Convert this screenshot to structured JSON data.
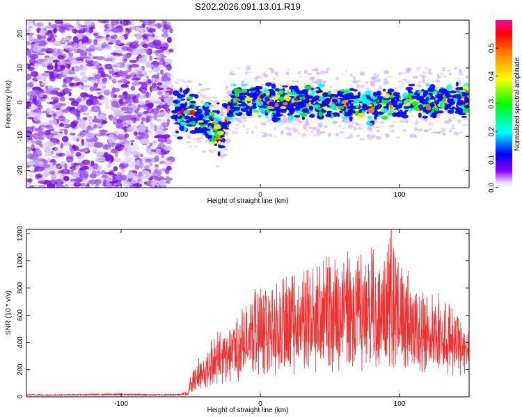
{
  "chart_data": [
    {
      "type": "heatmap",
      "title": "S202.2026.091.13.01.R19",
      "xlabel": "Height of straight line (km)",
      "ylabel": "Frequency (Hz)",
      "xlim": [
        -168,
        150
      ],
      "ylim": [
        -25,
        24
      ],
      "xticks": [
        -100,
        0,
        100
      ],
      "yticks": [
        -20,
        -10,
        0,
        10,
        20
      ],
      "colorbar": {
        "label": "Normalized spectral amplitude",
        "range": [
          0,
          0.6
        ],
        "ticks": [
          0.0,
          0.1,
          0.2,
          0.3,
          0.4,
          0.5
        ],
        "tick_labels": [
          "0.0",
          "0.1",
          "0.2",
          "0.3",
          "0.4",
          "0.5"
        ],
        "colors": [
          "#ffffff",
          "#8a00ff",
          "#0000ff",
          "#00ffff",
          "#00ff00",
          "#ffff00",
          "#ff8000",
          "#ff0000",
          "#ff00aa"
        ]
      },
      "regions": [
        {
          "name": "noise",
          "x_range": [
            -168,
            -64
          ],
          "freq_range": [
            -25,
            24
          ],
          "amplitude": 0.06
        },
        {
          "name": "signal-band",
          "x_range": [
            -64,
            150
          ],
          "center_freq": [
            [
              -60,
              -2
            ],
            [
              -40,
              -5
            ],
            [
              -28,
              -10
            ],
            [
              -20,
              1
            ],
            [
              0,
              0
            ],
            [
              40,
              0
            ],
            [
              80,
              -1
            ],
            [
              150,
              1
            ]
          ],
          "peak_amplitude": 0.55
        }
      ]
    },
    {
      "type": "line",
      "title": "",
      "xlabel": "Height of straight line (km)",
      "ylabel": "SNR (10 * v/v)",
      "xlim": [
        -168,
        150
      ],
      "ylim": [
        0,
        1230
      ],
      "xticks": [
        -100,
        0,
        100
      ],
      "yticks": [
        0,
        200,
        400,
        600,
        800,
        1000,
        1200
      ],
      "color": "#ee3333",
      "series": [
        {
          "name": "SNR",
          "x": [
            -168,
            -150,
            -120,
            -100,
            -80,
            -60,
            -52,
            -50,
            -40,
            -30,
            -20,
            -10,
            0,
            10,
            20,
            30,
            40,
            50,
            60,
            70,
            80,
            90,
            94,
            100,
            110,
            120,
            130,
            140,
            150
          ],
          "y": [
            20,
            18,
            22,
            25,
            20,
            22,
            40,
            200,
            350,
            500,
            600,
            700,
            850,
            820,
            900,
            950,
            1000,
            1050,
            1100,
            1050,
            1100,
            1100,
            1230,
            1000,
            900,
            850,
            750,
            650,
            500
          ],
          "baseline": [
            10,
            10,
            10,
            10,
            10,
            10,
            20,
            80,
            150,
            200,
            250,
            300,
            350,
            380,
            400,
            420,
            430,
            440,
            450,
            440,
            450,
            450,
            450,
            440,
            420,
            400,
            380,
            360,
            340
          ]
        }
      ]
    }
  ]
}
